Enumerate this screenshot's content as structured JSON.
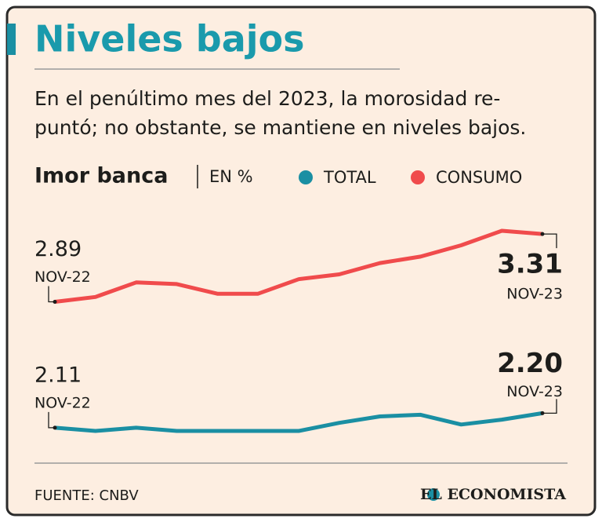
{
  "chart_data": {
    "type": "line",
    "title": "Niveles bajos",
    "subtitle": [
      "En el penúltimo mes del 2023, la morosidad re-",
      "puntó; no obstante, se mantiene en niveles bajos."
    ],
    "chart_label": "Imor banca",
    "unit_label": "EN %",
    "categories": [
      "NOV-22",
      null,
      null,
      null,
      null,
      null,
      null,
      null,
      null,
      null,
      null,
      null,
      "NOV-23"
    ],
    "series": [
      {
        "name": "TOTAL",
        "color": "#1a8fa3",
        "values": [
          2.11,
          2.09,
          2.11,
          2.09,
          2.09,
          2.09,
          2.09,
          2.14,
          2.18,
          2.19,
          2.13,
          2.16,
          2.2
        ],
        "value_labels": [
          "2.11",
          null,
          null,
          null,
          null,
          null,
          null,
          null,
          null,
          null,
          null,
          null,
          "2.20"
        ]
      },
      {
        "name": "CONSUMO",
        "color": "#f04b4c",
        "values": [
          2.89,
          2.92,
          3.01,
          3.0,
          2.94,
          2.94,
          3.03,
          3.06,
          3.13,
          3.17,
          3.24,
          3.33,
          3.31
        ],
        "value_labels": [
          "2.89",
          null,
          null,
          null,
          null,
          null,
          null,
          null,
          null,
          null,
          null,
          null,
          "3.31"
        ]
      }
    ],
    "source": "FUENTE: CNBV",
    "publisher": "EL ECONOMISTA"
  }
}
